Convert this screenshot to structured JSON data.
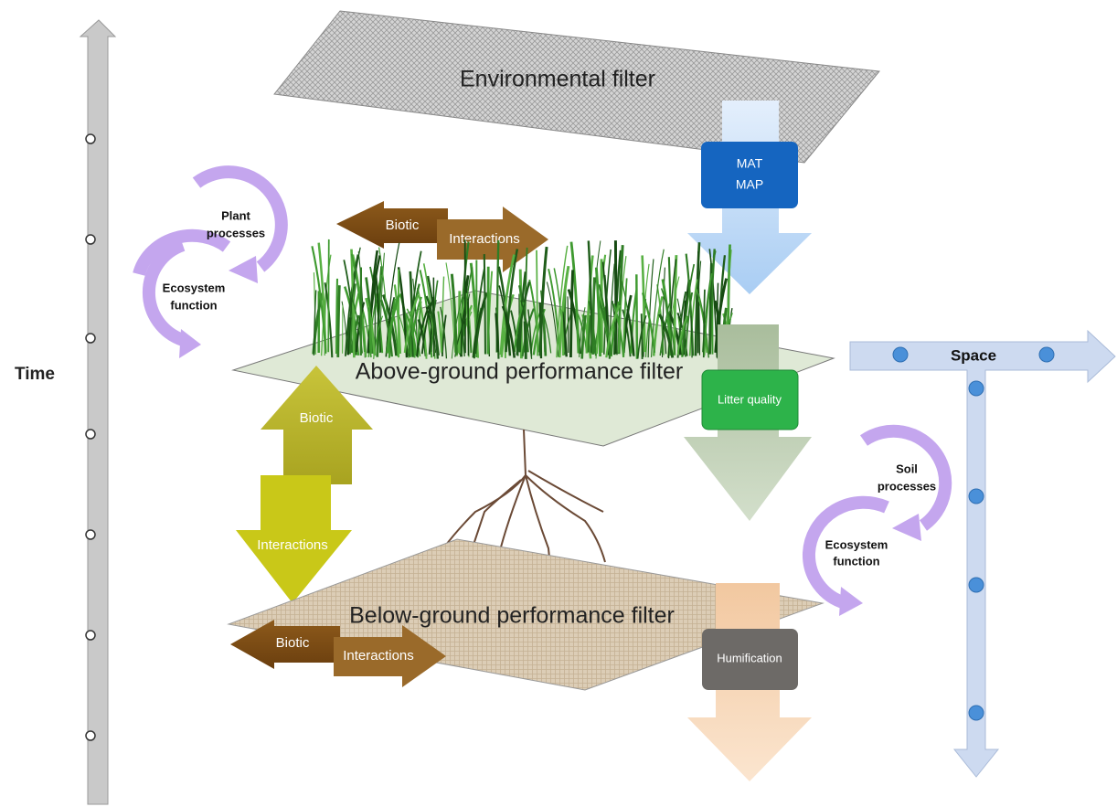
{
  "time_axis": {
    "label": "Time"
  },
  "space_axis": {
    "label": "Space"
  },
  "filters": [
    {
      "label": "Environmental filter"
    },
    {
      "label": "Above-ground performance filter"
    },
    {
      "label": "Below-ground performance filter"
    }
  ],
  "flow": [
    {
      "lines": [
        "MAT",
        "MAP"
      ]
    },
    {
      "label": "Litter quality"
    },
    {
      "label": "Humification"
    }
  ],
  "interactions": [
    {
      "biotic": "Biotic",
      "interactions": "Interactions"
    },
    {
      "biotic": "Biotic",
      "interactions": "Interactions"
    },
    {
      "biotic": "Biotic",
      "interactions": "Interactions"
    }
  ],
  "cycles": [
    {
      "outer": [
        "Plant",
        "processes"
      ],
      "inner": [
        "Ecosystem",
        "function"
      ]
    },
    {
      "outer": [
        "Soil",
        "processes"
      ],
      "inner": [
        "Ecosystem",
        "function"
      ]
    }
  ]
}
